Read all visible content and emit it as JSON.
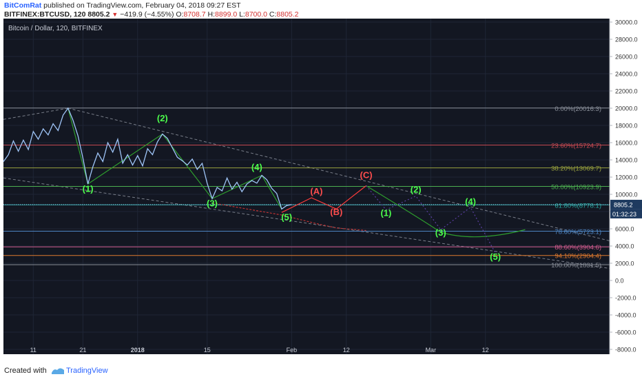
{
  "header": {
    "author": "BitComRat",
    "published_text": "published on TradingView.com, February 04, 2018 09:27 EST",
    "symbol": "BITFINEX:BTCUSD, 120",
    "last": "8805.2",
    "change": "−419.9 (−4.55%)",
    "o_label": "O:",
    "o_value": "8708.7",
    "h_label": "H:",
    "h_value": "8899.0",
    "l_label": "L:",
    "l_value": "8700.0",
    "c_label": "C:",
    "c_value": "8805.2"
  },
  "footer": {
    "created_with": "Created with",
    "tradingview": "TradingView"
  },
  "colors": {
    "background": "#131722",
    "price_line": "#9fc5f8",
    "wave_green": "#4cff4c",
    "wave_red": "#ff4d4d",
    "axis_text": "#333333"
  },
  "chart_data": {
    "type": "line",
    "title": "Bitcoin / Dollar, 120, BITFINEX",
    "ylim": [
      -8000,
      30000
    ],
    "y_ticks": [
      "30000.0",
      "28000.0",
      "26000.0",
      "24000.0",
      "22000.0",
      "20000.0",
      "18000.0",
      "16000.0",
      "14000.0",
      "12000.0",
      "10000.0",
      "8000.0",
      "6000.0",
      "4000.0",
      "2000.0",
      "0.0",
      "-2000.0",
      "-4000.0",
      "-6000.0",
      "-8000.0"
    ],
    "y_tick_values": [
      30000,
      28000,
      26000,
      24000,
      22000,
      20000,
      18000,
      16000,
      14000,
      12000,
      10000,
      8000,
      6000,
      4000,
      2000,
      0,
      -2000,
      -4000,
      -6000,
      -8000
    ],
    "x_ticks": [
      {
        "label": "11",
        "day": 11
      },
      {
        "label": "21",
        "day": 21
      },
      {
        "label": "2018",
        "day": 32
      },
      {
        "label": "15",
        "day": 46
      },
      {
        "label": "Feb",
        "day": 63
      },
      {
        "label": "12",
        "day": 74
      },
      {
        "label": "Mar",
        "day": 91
      },
      {
        "label": "12",
        "day": 102
      }
    ],
    "x_day_range": [
      5,
      127
    ],
    "price_series": {
      "name": "BTCUSD",
      "points": [
        [
          5,
          13800
        ],
        [
          6,
          14600
        ],
        [
          7,
          16200
        ],
        [
          8,
          15000
        ],
        [
          9,
          16300
        ],
        [
          10,
          15200
        ],
        [
          11,
          17300
        ],
        [
          12,
          16400
        ],
        [
          13,
          17600
        ],
        [
          14,
          16900
        ],
        [
          15,
          18200
        ],
        [
          16,
          17400
        ],
        [
          17,
          19200
        ],
        [
          18,
          20000
        ],
        [
          19,
          18600
        ],
        [
          20,
          16800
        ],
        [
          21,
          14200
        ],
        [
          22,
          11200
        ],
        [
          23,
          13200
        ],
        [
          24,
          14800
        ],
        [
          25,
          13800
        ],
        [
          26,
          16000
        ],
        [
          27,
          14900
        ],
        [
          28,
          16400
        ],
        [
          29,
          13600
        ],
        [
          30,
          14600
        ],
        [
          31,
          13400
        ],
        [
          32,
          14500
        ],
        [
          33,
          13300
        ],
        [
          34,
          15300
        ],
        [
          35,
          14600
        ],
        [
          36,
          16100
        ],
        [
          37,
          17000
        ],
        [
          38,
          16500
        ],
        [
          39,
          15400
        ],
        [
          40,
          14300
        ],
        [
          41,
          13900
        ],
        [
          42,
          13400
        ],
        [
          43,
          14100
        ],
        [
          44,
          12900
        ],
        [
          45,
          13600
        ],
        [
          46,
          11300
        ],
        [
          47,
          9500
        ],
        [
          48,
          10800
        ],
        [
          49,
          10400
        ],
        [
          50,
          11900
        ],
        [
          51,
          10600
        ],
        [
          52,
          11400
        ],
        [
          53,
          10300
        ],
        [
          54,
          11200
        ],
        [
          55,
          11600
        ],
        [
          56,
          11300
        ],
        [
          57,
          12200
        ],
        [
          58,
          11700
        ],
        [
          59,
          10700
        ],
        [
          60,
          10100
        ],
        [
          61,
          8300
        ],
        [
          62,
          8700
        ],
        [
          63,
          8805
        ]
      ]
    },
    "fib_levels": [
      {
        "label": "0.00%(20016.3)",
        "value": 20016.3,
        "color": "#8a8f99"
      },
      {
        "label": "23.60%(15724.7)",
        "value": 15724.7,
        "color": "#c64a52"
      },
      {
        "label": "38.20%(13069.7)",
        "value": 13069.7,
        "color": "#9aa23e"
      },
      {
        "label": "50.00%(10923.9)",
        "value": 10923.9,
        "color": "#4caf50"
      },
      {
        "label": "61.80%(8778.1)",
        "value": 8778.1,
        "color": "#2aa8a0"
      },
      {
        "label": "78.60%(5723.1)",
        "value": 5723.1,
        "color": "#4f87c5"
      },
      {
        "label": "88.60%(3904.6)",
        "value": 3904.6,
        "color": "#d25a8c"
      },
      {
        "label": "94.10%(2904.4)",
        "value": 2904.4,
        "color": "#e07a2e"
      },
      {
        "label": "100.00%(1831.5)",
        "value": 1831.5,
        "color": "#8a8f99"
      }
    ],
    "wave_labels": [
      {
        "label": "(1)",
        "day": 22,
        "value": 10300,
        "color": "#4cff4c"
      },
      {
        "label": "(2)",
        "day": 37,
        "value": 18500,
        "color": "#4cff4c"
      },
      {
        "label": "(3)",
        "day": 47,
        "value": 8600,
        "color": "#4cff4c"
      },
      {
        "label": "(4)",
        "day": 56,
        "value": 12800,
        "color": "#4cff4c"
      },
      {
        "label": "(5)",
        "day": 62,
        "value": 7000,
        "color": "#4cff4c"
      },
      {
        "label": "(A)",
        "day": 68,
        "value": 10000,
        "color": "#ff4d4d"
      },
      {
        "label": "(B)",
        "day": 72,
        "value": 7600,
        "color": "#ff4d4d"
      },
      {
        "label": "(C)",
        "day": 78,
        "value": 11900,
        "color": "#ff4d4d"
      },
      {
        "label": "(1)",
        "day": 82,
        "value": 7500,
        "color": "#4cff4c"
      },
      {
        "label": "(2)",
        "day": 88,
        "value": 10200,
        "color": "#4cff4c"
      },
      {
        "label": "(3)",
        "day": 93,
        "value": 5200,
        "color": "#4cff4c"
      },
      {
        "label": "(4)",
        "day": 99,
        "value": 8800,
        "color": "#4cff4c"
      },
      {
        "label": "(5)",
        "day": 104,
        "value": 2400,
        "color": "#4cff4c"
      }
    ],
    "price_tag": "8805.2",
    "countdown": "01:32:23"
  }
}
